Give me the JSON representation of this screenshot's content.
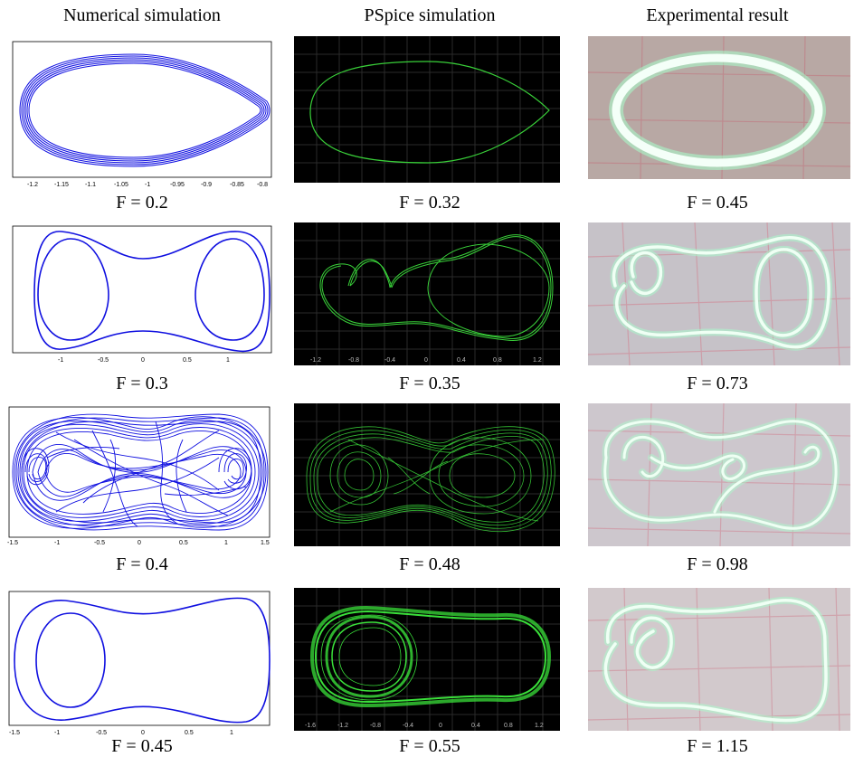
{
  "headers": [
    "Numerical simulation",
    "PSpice simulation",
    "Experimental result"
  ],
  "rows": [
    {
      "numerical": {
        "caption": "F = 0.2",
        "xticks": [
          "-1.2",
          "-1.15",
          "-1.1",
          "-1.05",
          "-1",
          "-0.95",
          "-0.9",
          "-0.85",
          "-0.8"
        ]
      },
      "pspice": {
        "caption": "F = 0.32",
        "xticks": []
      },
      "experimental": {
        "caption": "F = 0.45"
      }
    },
    {
      "numerical": {
        "caption": "F = 0.3",
        "xticks": [
          "-1",
          "-0.5",
          "0",
          "0.5",
          "1"
        ]
      },
      "pspice": {
        "caption": "F = 0.35",
        "xticks": [
          "-1.2",
          "-0.8",
          "-0.4",
          "0",
          "0.4",
          "0.8",
          "1.2"
        ]
      },
      "experimental": {
        "caption": "F = 0.73"
      }
    },
    {
      "numerical": {
        "caption": "F = 0.4",
        "xticks": [
          "-1.5",
          "-1",
          "-0.5",
          "0",
          "0.5",
          "1",
          "1.5"
        ]
      },
      "pspice": {
        "caption": "F = 0.48",
        "xticks": []
      },
      "experimental": {
        "caption": "F = 0.98"
      }
    },
    {
      "numerical": {
        "caption": "F = 0.45",
        "xticks": [
          "-1.5",
          "-1",
          "-0.5",
          "0",
          "0.5",
          "1"
        ]
      },
      "pspice": {
        "caption": "F = 0.55",
        "xticks": [
          "-1.6",
          "-1.2",
          "-0.8",
          "-0.4",
          "0",
          "0.4",
          "0.8",
          "1.2"
        ]
      },
      "experimental": {
        "caption": "F = 1.15"
      }
    }
  ],
  "colors": {
    "numerical": "#1010e0",
    "pspice": "#39d039",
    "experimental": "#e8ffee"
  }
}
